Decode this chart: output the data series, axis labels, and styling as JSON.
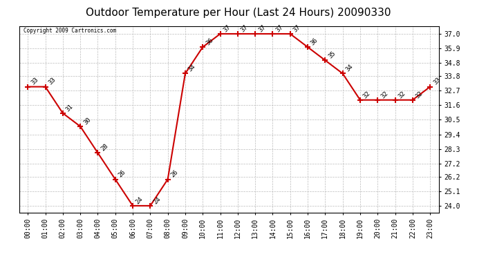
{
  "title": "Outdoor Temperature per Hour (Last 24 Hours) 20090330",
  "copyright": "Copyright 2009 Cartronics.com",
  "hours": [
    "00:00",
    "01:00",
    "02:00",
    "03:00",
    "04:00",
    "05:00",
    "06:00",
    "07:00",
    "08:00",
    "09:00",
    "10:00",
    "11:00",
    "12:00",
    "13:00",
    "14:00",
    "15:00",
    "16:00",
    "17:00",
    "18:00",
    "19:00",
    "20:00",
    "21:00",
    "22:00",
    "23:00"
  ],
  "temperatures": [
    33,
    33,
    31,
    30,
    28,
    26,
    24,
    24,
    26,
    34,
    36,
    37,
    37,
    37,
    37,
    37,
    36,
    35,
    34,
    32,
    32,
    32,
    32,
    33
  ],
  "line_color": "#cc0000",
  "marker_color": "#cc0000",
  "bg_color": "#ffffff",
  "grid_color": "#bbbbbb",
  "title_fontsize": 11,
  "tick_fontsize": 7,
  "yticks": [
    24.0,
    25.1,
    26.2,
    27.2,
    28.3,
    29.4,
    30.5,
    31.6,
    32.7,
    33.8,
    34.8,
    35.9,
    37.0
  ],
  "ylim": [
    23.5,
    37.6
  ],
  "annotation_fontsize": 6.5
}
